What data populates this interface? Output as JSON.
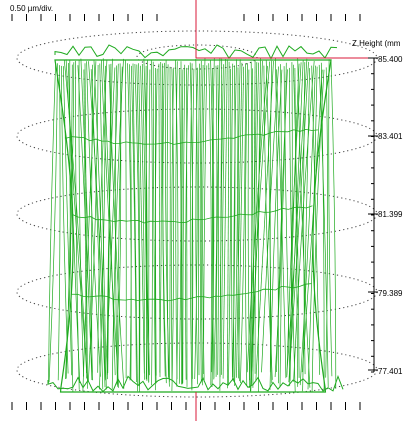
{
  "scale_label": "0.50 µm/div.",
  "axis_title": "Z Height (mm",
  "z_labels": [
    "85.400",
    "83.401",
    "81.399",
    "79.389",
    "77.401"
  ],
  "colors": {
    "surface": "#1faa1f",
    "center_marker": "#d81a3a",
    "axis": "#000000",
    "guide": "#444444"
  }
}
